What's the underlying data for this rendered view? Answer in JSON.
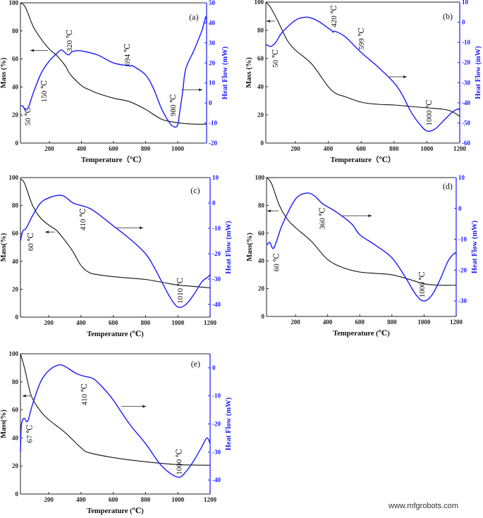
{
  "watermark": "www.mfgrobots.com",
  "colors": {
    "mass": "#111111",
    "heat_flow": "#1a1aff",
    "arrow": "#555555"
  },
  "chart_data": [
    {
      "type": "line",
      "panel_label": "(a)",
      "xlabel": "Temperature（℃）",
      "ylabel_left": "Mass (%)",
      "ylabel_right": "Heat Flow (mW)",
      "xlim": [
        20,
        1180
      ],
      "ylim_left": [
        0,
        100
      ],
      "ylim_right": [
        -20,
        50
      ],
      "xticks": [
        200,
        400,
        600,
        800,
        1000
      ],
      "yticks_left": [
        0,
        20,
        40,
        60,
        80,
        100
      ],
      "yticks_right": [
        -20,
        -10,
        0,
        10,
        20,
        30,
        40,
        50
      ],
      "mass": [
        [
          20,
          100
        ],
        [
          50,
          97
        ],
        [
          100,
          83
        ],
        [
          150,
          74
        ],
        [
          200,
          67
        ],
        [
          250,
          62
        ],
        [
          300,
          55
        ],
        [
          330,
          49
        ],
        [
          400,
          41
        ],
        [
          450,
          38
        ],
        [
          500,
          35.5
        ],
        [
          600,
          32
        ],
        [
          700,
          29.5
        ],
        [
          800,
          24
        ],
        [
          900,
          17
        ],
        [
          1000,
          14.5
        ],
        [
          1100,
          13.5
        ],
        [
          1180,
          13.5
        ]
      ],
      "heat_flow": [
        [
          20,
          -1.5
        ],
        [
          35,
          -1.5
        ],
        [
          50,
          -3.5
        ],
        [
          70,
          -2
        ],
        [
          100,
          5
        ],
        [
          150,
          15
        ],
        [
          200,
          21
        ],
        [
          250,
          25
        ],
        [
          275,
          26.5
        ],
        [
          300,
          25
        ],
        [
          320,
          24
        ],
        [
          340,
          25.5
        ],
        [
          360,
          26
        ],
        [
          400,
          26
        ],
        [
          500,
          24
        ],
        [
          600,
          20
        ],
        [
          700,
          18.5
        ],
        [
          720,
          18.5
        ],
        [
          800,
          14
        ],
        [
          850,
          7
        ],
        [
          900,
          -3
        ],
        [
          950,
          -10
        ],
        [
          980,
          -12
        ],
        [
          1000,
          -11
        ],
        [
          1010,
          -6
        ],
        [
          1030,
          5
        ],
        [
          1050,
          17
        ],
        [
          1100,
          26
        ],
        [
          1150,
          36
        ],
        [
          1175,
          43
        ],
        [
          1180,
          40
        ]
      ],
      "annotations": [
        {
          "text": "50 ℃",
          "at": [
            65,
            19
          ]
        },
        {
          "text": "150 ℃",
          "at": [
            165,
            37
          ]
        },
        {
          "text": "320 ℃",
          "at": [
            323,
            73
          ]
        },
        {
          "text": "694 ℃",
          "at": [
            684,
            63
          ]
        },
        {
          "text": "980 ℃",
          "at": [
            970,
            27
          ]
        }
      ],
      "label_at": [
        1100,
        90
      ],
      "arrows": [
        {
          "direction": "left",
          "series": "mass",
          "from": [
            192,
            66
          ],
          "to": [
            82,
            66
          ]
        },
        {
          "direction": "right",
          "series": "heat_flow",
          "from": [
            1022,
            38
          ],
          "to": [
            1154,
            38
          ]
        }
      ]
    },
    {
      "type": "line",
      "panel_label": "(b)",
      "xlabel": "Temperature（℃）",
      "ylabel_left": "Mass (%)",
      "ylabel_right": "Heat Flow (mW)",
      "xlim": [
        20,
        1200
      ],
      "ylim_left": [
        0,
        100
      ],
      "ylim_right": [
        -60,
        10
      ],
      "xticks": [
        200,
        400,
        600,
        800,
        1000,
        1200
      ],
      "yticks_left": [
        0,
        20,
        40,
        60,
        80,
        100
      ],
      "yticks_right": [
        -60,
        -50,
        -40,
        -30,
        -20,
        -10,
        0,
        10
      ],
      "mass": [
        [
          20,
          100
        ],
        [
          50,
          96
        ],
        [
          100,
          85
        ],
        [
          150,
          73
        ],
        [
          200,
          66
        ],
        [
          300,
          56
        ],
        [
          400,
          40
        ],
        [
          450,
          35
        ],
        [
          500,
          33
        ],
        [
          600,
          29
        ],
        [
          700,
          27.5
        ],
        [
          800,
          27
        ],
        [
          900,
          26
        ],
        [
          1000,
          25
        ],
        [
          1100,
          24
        ],
        [
          1150,
          22.5
        ],
        [
          1200,
          19
        ]
      ],
      "heat_flow": [
        [
          20,
          -11
        ],
        [
          50,
          -12
        ],
        [
          80,
          -10
        ],
        [
          120,
          -5
        ],
        [
          200,
          1
        ],
        [
          260,
          2.5
        ],
        [
          300,
          2
        ],
        [
          350,
          0
        ],
        [
          400,
          -3
        ],
        [
          420,
          -4
        ],
        [
          430,
          -5
        ],
        [
          440,
          -4.5
        ],
        [
          500,
          -7
        ],
        [
          600,
          -15
        ],
        [
          700,
          -22
        ],
        [
          800,
          -30
        ],
        [
          850,
          -36
        ],
        [
          900,
          -44
        ],
        [
          950,
          -50
        ],
        [
          1000,
          -54
        ],
        [
          1050,
          -53
        ],
        [
          1100,
          -49
        ],
        [
          1150,
          -45
        ],
        [
          1190,
          -43
        ],
        [
          1200,
          -44
        ]
      ],
      "annotations": [
        {
          "text": "50 ℃",
          "at": [
            76,
            60
          ]
        },
        {
          "text": "420 ℃",
          "at": [
            432,
            90
          ]
        },
        {
          "text": "599 ℃",
          "at": [
            600,
            74
          ]
        },
        {
          "text": "1000 ℃",
          "at": [
            1011,
            21.5
          ]
        }
      ],
      "label_at": [
        1127,
        90
      ],
      "arrows": [
        {
          "direction": "left",
          "series": "mass",
          "from": [
            76,
            86.5
          ],
          "to": [
            24,
            86.5
          ]
        },
        {
          "direction": "right",
          "series": "heat_flow",
          "from": [
            762,
            47
          ],
          "to": [
            878,
            47
          ]
        }
      ]
    },
    {
      "type": "line",
      "panel_label": "(c)",
      "xlabel": "Temperature (℃)",
      "ylabel_left": "Mass(%)",
      "ylabel_right": "Heat Flow (mW)",
      "xlim": [
        25,
        1200
      ],
      "ylim_left": [
        0,
        100
      ],
      "ylim_right": [
        -45,
        10
      ],
      "xticks": [
        200,
        400,
        600,
        800,
        1000,
        1200
      ],
      "yticks_left": [
        0,
        20,
        40,
        60,
        80,
        100
      ],
      "yticks_right": [
        -40,
        -30,
        -20,
        -10,
        0,
        10
      ],
      "mass": [
        [
          25,
          99
        ],
        [
          50,
          96
        ],
        [
          100,
          80
        ],
        [
          150,
          71
        ],
        [
          200,
          66
        ],
        [
          250,
          62
        ],
        [
          300,
          55
        ],
        [
          350,
          47
        ],
        [
          400,
          37
        ],
        [
          450,
          32
        ],
        [
          500,
          30.5
        ],
        [
          600,
          29
        ],
        [
          700,
          28
        ],
        [
          800,
          27
        ],
        [
          900,
          25
        ],
        [
          1000,
          23
        ],
        [
          1100,
          22
        ],
        [
          1200,
          21
        ]
      ],
      "heat_flow": [
        [
          25,
          -15
        ],
        [
          40,
          -11
        ],
        [
          60,
          -10
        ],
        [
          100,
          -5
        ],
        [
          150,
          0
        ],
        [
          200,
          2
        ],
        [
          260,
          3
        ],
        [
          300,
          2.5
        ],
        [
          350,
          0
        ],
        [
          400,
          -1
        ],
        [
          450,
          -2
        ],
        [
          500,
          -4
        ],
        [
          600,
          -9
        ],
        [
          700,
          -14
        ],
        [
          800,
          -20
        ],
        [
          850,
          -25
        ],
        [
          900,
          -31
        ],
        [
          950,
          -37
        ],
        [
          1000,
          -41
        ],
        [
          1050,
          -40
        ],
        [
          1100,
          -36
        ],
        [
          1150,
          -31
        ],
        [
          1190,
          -29
        ],
        [
          1200,
          -28
        ]
      ],
      "annotations": [
        {
          "text": "60 ℃",
          "at": [
            86,
            54
          ]
        },
        {
          "text": "410 ℃",
          "at": [
            409,
            70
          ]
        },
        {
          "text": "1010 ℃",
          "at": [
            1012,
            19
          ]
        }
      ],
      "label_at": [
        1108,
        91
      ],
      "arrows": [
        {
          "direction": "left",
          "series": "mass",
          "from": [
            239,
            61
          ],
          "to": [
            178,
            61
          ]
        },
        {
          "direction": "right",
          "series": "heat_flow",
          "from": [
            619,
            64
          ],
          "to": [
            785,
            64
          ]
        }
      ]
    },
    {
      "type": "line",
      "panel_label": "(d)",
      "xlabel": "Temperature (℃)",
      "ylabel_left": "Mass(%)",
      "ylabel_right": "Heat Flow (mW)",
      "xlim": [
        20,
        1200
      ],
      "ylim_left": [
        0,
        100
      ],
      "ylim_right": [
        -35,
        10
      ],
      "xticks": [
        200,
        400,
        600,
        800,
        1000,
        1200
      ],
      "yticks_left": [
        0,
        20,
        40,
        60,
        80,
        100
      ],
      "yticks_right": [
        -30,
        -20,
        -10,
        0,
        10
      ],
      "mass": [
        [
          20,
          100
        ],
        [
          50,
          96
        ],
        [
          100,
          80
        ],
        [
          150,
          70
        ],
        [
          200,
          64
        ],
        [
          300,
          54
        ],
        [
          400,
          41
        ],
        [
          500,
          35
        ],
        [
          600,
          32
        ],
        [
          700,
          31
        ],
        [
          800,
          30
        ],
        [
          900,
          27
        ],
        [
          1000,
          23.5
        ],
        [
          1100,
          22.5
        ],
        [
          1200,
          22.5
        ]
      ],
      "heat_flow": [
        [
          20,
          -12
        ],
        [
          40,
          -11
        ],
        [
          60,
          -13
        ],
        [
          80,
          -11
        ],
        [
          120,
          -5
        ],
        [
          200,
          3
        ],
        [
          270,
          5
        ],
        [
          320,
          4
        ],
        [
          370,
          1.5
        ],
        [
          450,
          -1
        ],
        [
          550,
          -5
        ],
        [
          600,
          -8.5
        ],
        [
          700,
          -12
        ],
        [
          800,
          -16
        ],
        [
          880,
          -22
        ],
        [
          950,
          -28
        ],
        [
          1000,
          -30
        ],
        [
          1050,
          -28
        ],
        [
          1100,
          -23
        ],
        [
          1150,
          -17
        ],
        [
          1190,
          -14.5
        ],
        [
          1200,
          -15
        ]
      ],
      "annotations": [
        {
          "text": "60 ℃",
          "at": [
            80,
            39
          ]
        },
        {
          "text": "360 ℃",
          "at": [
            364,
            70.5
          ]
        },
        {
          "text": "1000 ℃",
          "at": [
            986,
            23
          ]
        }
      ],
      "label_at": [
        1147,
        94
      ],
      "arrows": [
        {
          "direction": "left",
          "series": "mass",
          "from": [
            95,
            76
          ],
          "to": [
            24,
            76
          ]
        },
        {
          "direction": "right",
          "series": "heat_flow",
          "from": [
            481,
            72.5
          ],
          "to": [
            675,
            72.5
          ]
        }
      ]
    },
    {
      "type": "line",
      "panel_label": "(e)",
      "xlabel": "Temperature (℃)",
      "ylabel_left": "Mass(%)",
      "ylabel_right": "Heat Flow (mW)",
      "xlim": [
        25,
        1200
      ],
      "ylim_left": [
        0,
        100
      ],
      "ylim_right": [
        -45,
        5
      ],
      "xticks": [
        200,
        400,
        600,
        800,
        1000,
        1200
      ],
      "yticks_left": [
        0,
        20,
        40,
        60,
        80,
        100
      ],
      "yticks_right": [
        -40,
        -30,
        -20,
        -10,
        0
      ],
      "mass": [
        [
          25,
          100
        ],
        [
          50,
          90
        ],
        [
          80,
          75
        ],
        [
          100,
          68
        ],
        [
          150,
          59
        ],
        [
          200,
          53
        ],
        [
          300,
          44
        ],
        [
          400,
          33
        ],
        [
          450,
          29.5
        ],
        [
          600,
          26
        ],
        [
          800,
          23
        ],
        [
          1000,
          21
        ],
        [
          1200,
          20.5
        ]
      ],
      "heat_flow": [
        [
          25,
          -30
        ],
        [
          30,
          -21
        ],
        [
          40,
          -18.5
        ],
        [
          50,
          -18
        ],
        [
          70,
          -19
        ],
        [
          100,
          -13
        ],
        [
          150,
          -5
        ],
        [
          200,
          -1
        ],
        [
          260,
          1
        ],
        [
          300,
          0.5
        ],
        [
          370,
          -2
        ],
        [
          420,
          -3
        ],
        [
          480,
          -4
        ],
        [
          550,
          -8
        ],
        [
          600,
          -11.5
        ],
        [
          700,
          -20
        ],
        [
          800,
          -27
        ],
        [
          900,
          -35
        ],
        [
          1000,
          -39
        ],
        [
          1050,
          -37
        ],
        [
          1100,
          -33
        ],
        [
          1150,
          -28
        ],
        [
          1180,
          -25
        ],
        [
          1200,
          -27
        ]
      ],
      "annotations": [
        {
          "text": "67 ℃",
          "at": [
            79,
            43
          ]
        },
        {
          "text": "410 ℃",
          "at": [
            418,
            71
          ]
        },
        {
          "text": "1000 ℃",
          "at": [
            1006,
            23
          ]
        }
      ],
      "label_at": [
        1110,
        93
      ],
      "arrows": [
        {
          "direction": "left",
          "series": "mass",
          "from": [
            95,
            70
          ],
          "to": [
            37,
            70
          ]
        },
        {
          "direction": "right",
          "series": "heat_flow",
          "from": [
            650,
            62.5
          ],
          "to": [
            803,
            62.5
          ]
        }
      ]
    }
  ]
}
